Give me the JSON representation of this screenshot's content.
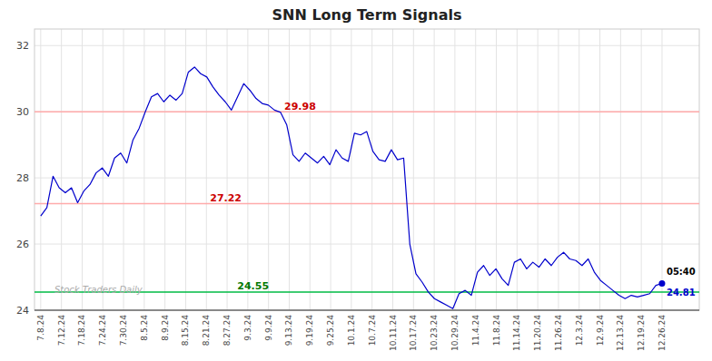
{
  "chart_data": {
    "type": "line",
    "title": "SNN Long Term Signals",
    "color": "#0000cc",
    "grid": true,
    "xlim": [
      -0.3,
      31.8
    ],
    "ylim": [
      24.0,
      32.5
    ],
    "yticks": [
      24,
      26,
      28,
      30,
      32
    ],
    "xticks": [
      {
        "value": 0,
        "label": "7.8.24"
      },
      {
        "value": 1,
        "label": "7.12.24"
      },
      {
        "value": 2,
        "label": "7.18.24"
      },
      {
        "value": 3,
        "label": "7.24.24"
      },
      {
        "value": 4,
        "label": "7.30.24"
      },
      {
        "value": 5,
        "label": "8.5.24"
      },
      {
        "value": 6,
        "label": "8.9.24"
      },
      {
        "value": 7,
        "label": "8.15.24"
      },
      {
        "value": 8,
        "label": "8.21.24"
      },
      {
        "value": 9,
        "label": "8.27.24"
      },
      {
        "value": 10,
        "label": "9.3.24"
      },
      {
        "value": 11,
        "label": "9.9.24"
      },
      {
        "value": 12,
        "label": "9.13.24"
      },
      {
        "value": 13,
        "label": "9.19.24"
      },
      {
        "value": 14,
        "label": "9.25.24"
      },
      {
        "value": 15,
        "label": "10.1.24"
      },
      {
        "value": 16,
        "label": "10.7.24"
      },
      {
        "value": 17,
        "label": "10.11.24"
      },
      {
        "value": 18,
        "label": "10.17.24"
      },
      {
        "value": 19,
        "label": "10.23.24"
      },
      {
        "value": 20,
        "label": "10.29.24"
      },
      {
        "value": 21,
        "label": "11.4.24"
      },
      {
        "value": 22,
        "label": "11.8.24"
      },
      {
        "value": 23,
        "label": "11.14.24"
      },
      {
        "value": 24,
        "label": "11.20.24"
      },
      {
        "value": 25,
        "label": "11.26.24"
      },
      {
        "value": 26,
        "label": "12.3.24"
      },
      {
        "value": 27,
        "label": "12.9.24"
      },
      {
        "value": 28,
        "label": "12.13.24"
      },
      {
        "value": 29,
        "label": "12.19.24"
      },
      {
        "value": 30,
        "label": "12.26.24"
      }
    ],
    "x": [
      0,
      0.2970297,
      0.59405941,
      0.89108911,
      1.18811881,
      1.48514851,
      1.78217822,
      2.07920792,
      2.37623762,
      2.67326733,
      2.97029703,
      3.26732673,
      3.56435644,
      3.86138614,
      4.15841584,
      4.45544554,
      4.75247525,
      5.04950495,
      5.34653465,
      5.64356436,
      5.94059406,
      6.23762376,
      6.53465347,
      6.83168317,
      7.12871287,
      7.42574257,
      7.72277228,
      8.01980198,
      8.31683168,
      8.61386139,
      8.91089109,
      9.20792079,
      9.5049505,
      9.8019802,
      10.0990099,
      10.3960396,
      10.69306931,
      10.99009901,
      11.28712871,
      11.58415842,
      11.88118812,
      12.17821782,
      12.47524752,
      12.77227723,
      13.06930693,
      13.36633663,
      13.66336634,
      13.96039604,
      14.25742574,
      14.55445545,
      14.85148515,
      15.14851485,
      15.44554455,
      15.74257426,
      16.03960396,
      16.33663366,
      16.63366337,
      16.93069307,
      17.22772277,
      17.52475248,
      17.82178218,
      18.11881188,
      18.41584158,
      18.71287129,
      19.00990099,
      19.30693069,
      19.6039604,
      19.9009901,
      20.1980198,
      20.4950495,
      20.79207921,
      21.08910891,
      21.38613861,
      21.68316832,
      21.98019802,
      22.27722772,
      22.57425743,
      22.87128713,
      23.16831683,
      23.46534653,
      23.76237624,
      24.05940594,
      24.35643564,
      24.65346535,
      24.95049505,
      25.24752475,
      25.54455446,
      25.84158416,
      26.13861386,
      26.43564356,
      26.73267327,
      27.02970297,
      27.32673267,
      27.62376238,
      27.92079208,
      28.21782178,
      28.51485149,
      28.81188119,
      29.10891089,
      29.40594059,
      29.7029703,
      30
    ],
    "values": [
      26.85,
      27.1,
      28.05,
      27.7,
      27.55,
      27.7,
      27.25,
      27.6,
      27.8,
      28.15,
      28.3,
      28.05,
      28.6,
      28.75,
      28.45,
      29.15,
      29.5,
      30.0,
      30.45,
      30.55,
      30.3,
      30.5,
      30.35,
      30.55,
      31.2,
      31.35,
      31.15,
      31.05,
      30.75,
      30.5,
      30.3,
      30.05,
      30.45,
      30.85,
      30.65,
      30.4,
      30.25,
      30.2,
      30.05,
      29.98,
      29.6,
      28.7,
      28.5,
      28.75,
      28.6,
      28.45,
      28.65,
      28.4,
      28.85,
      28.6,
      28.5,
      29.35,
      29.3,
      29.4,
      28.8,
      28.55,
      28.5,
      28.85,
      28.55,
      28.6,
      26.0,
      25.1,
      24.85,
      24.55,
      24.35,
      24.25,
      24.15,
      24.05,
      24.5,
      24.6,
      24.45,
      25.15,
      25.35,
      25.05,
      25.25,
      24.95,
      24.75,
      25.45,
      25.55,
      25.25,
      25.45,
      25.3,
      25.55,
      25.35,
      25.6,
      25.75,
      25.55,
      25.5,
      25.35,
      25.55,
      25.15,
      24.9,
      24.75,
      24.6,
      24.45,
      24.35,
      24.45,
      24.4,
      24.45,
      24.5,
      24.75,
      24.81
    ],
    "reference_lines": [
      {
        "value": 30.0,
        "color": "#ffaaaa"
      },
      {
        "value": 27.22,
        "color": "#ffaaaa",
        "label": "27.22",
        "label_color": "#cc0000"
      },
      {
        "value": 24.55,
        "color": "#00bb44",
        "label": "24.55",
        "label_color": "#007700"
      }
    ],
    "annotations": [
      {
        "text": "29.98",
        "color": "#cc0000",
        "x": 11.58415842,
        "y": 29.98
      }
    ],
    "end_time": "05:40",
    "end_value_label": "24.81",
    "watermark": "Stock Traders Daily",
    "watermark_color": "#aaaaaa"
  }
}
